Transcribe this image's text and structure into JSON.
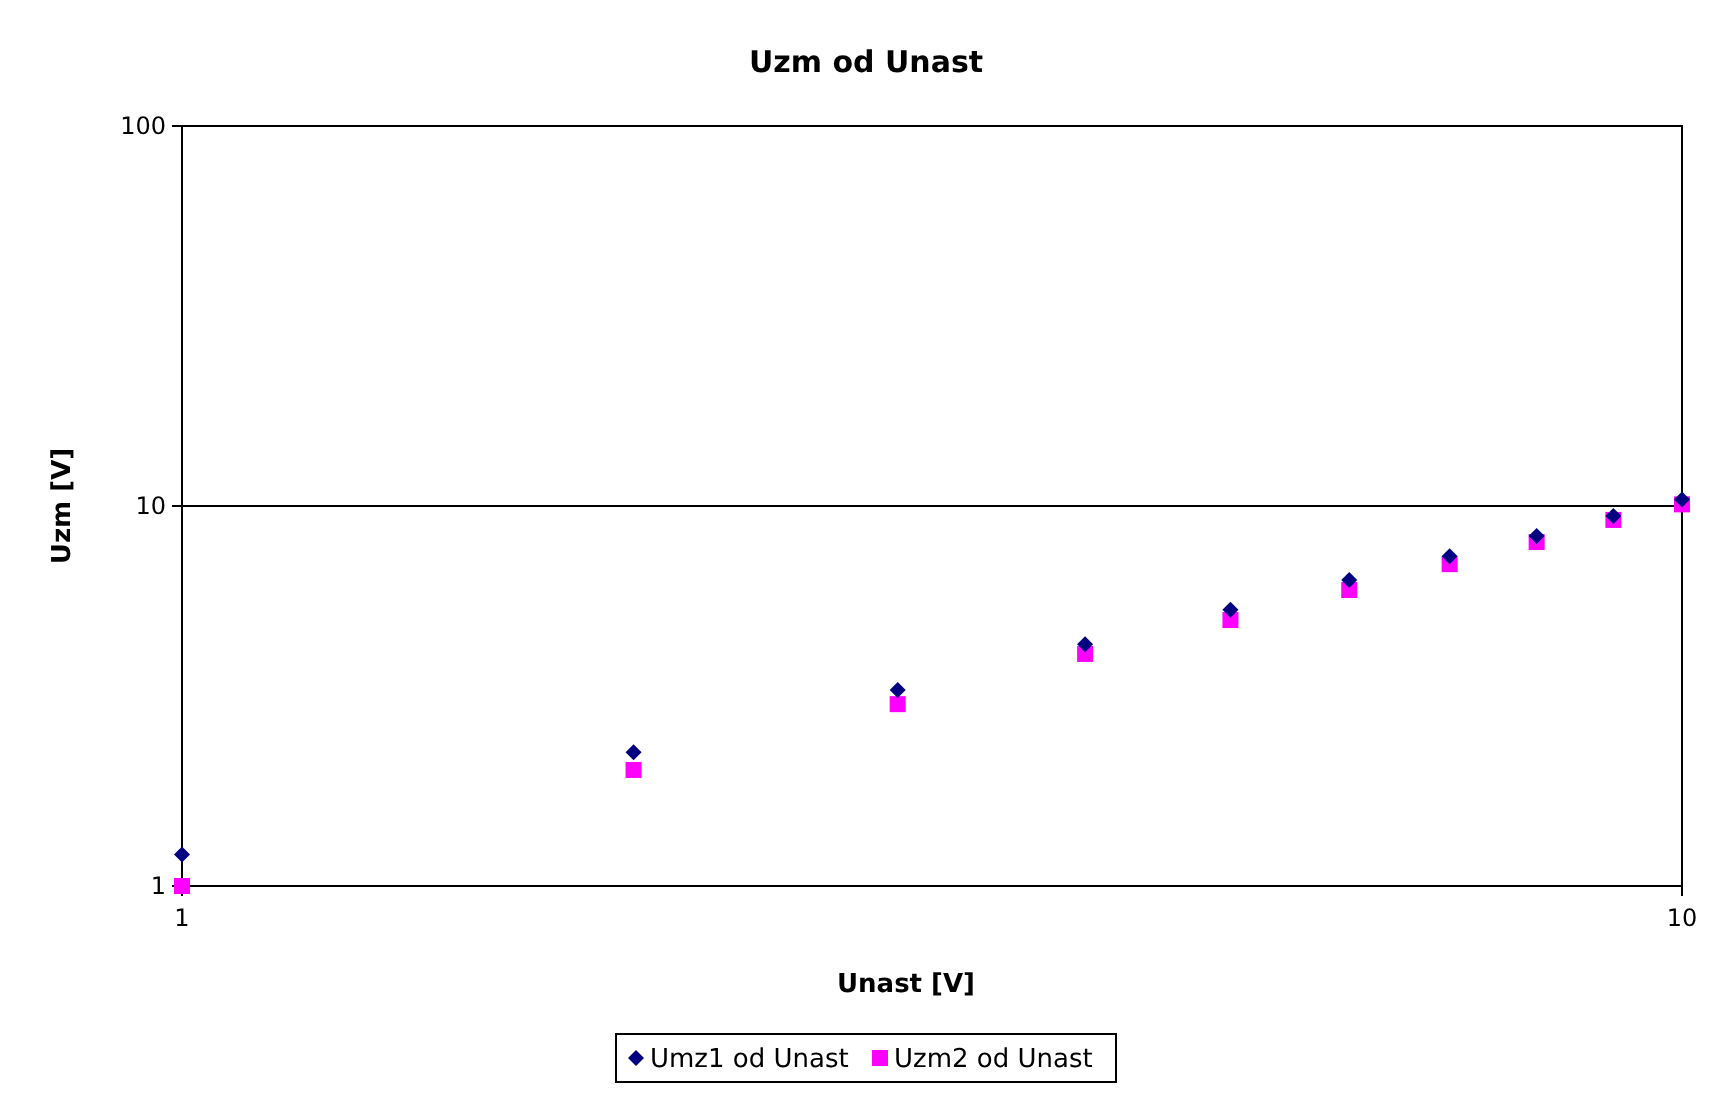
{
  "chart_data": {
    "type": "scatter",
    "title": "Uzm od Unast",
    "xlabel": "Unast [V]",
    "ylabel": "Uzm [V]",
    "x": [
      1,
      2,
      3,
      4,
      5,
      6,
      7,
      8,
      9,
      10
    ],
    "series": [
      {
        "name": "Umz1 od Unast",
        "color": "#000080",
        "marker": "diamond",
        "values": [
          1.21,
          2.25,
          3.28,
          4.33,
          5.33,
          6.39,
          7.38,
          8.34,
          9.41,
          10.4
        ]
      },
      {
        "name": "Uzm2 od Unast",
        "color": "#ff00ff",
        "marker": "square",
        "values": [
          1.0,
          2.02,
          3.01,
          4.08,
          5.01,
          6.01,
          7.03,
          8.04,
          9.19,
          10.1
        ]
      }
    ],
    "log": "xy",
    "xlim": [
      1,
      10
    ],
    "ylim": [
      1,
      100
    ],
    "xticks": [
      1,
      10
    ],
    "yticks": [
      1,
      10,
      100
    ],
    "grid": "y",
    "legend": "bottom"
  }
}
